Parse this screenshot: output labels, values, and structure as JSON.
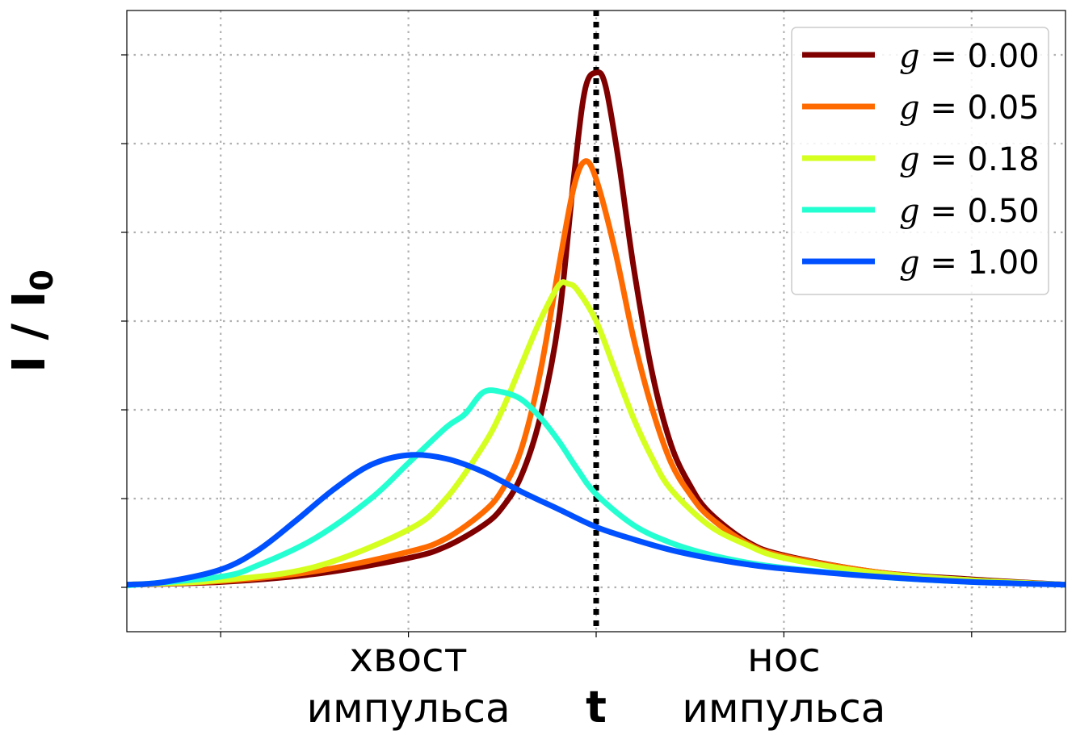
{
  "chart_data": {
    "type": "line",
    "title": "",
    "xlabel": "t",
    "ylabel": "I / I₀",
    "ylabel_main": "I / I",
    "ylabel_subscript": "0",
    "xlim": [
      -2.5,
      2.5
    ],
    "ylim": [
      -0.05,
      0.65
    ],
    "xticks": [
      -2.0,
      -1.0,
      0.0,
      1.0,
      2.0
    ],
    "yticks": [
      0.0,
      0.1,
      0.2,
      0.3,
      0.4,
      0.5,
      0.6
    ],
    "category_labels": [
      {
        "x": -1.0,
        "line1": "хвост",
        "line2": "импульса"
      },
      {
        "x": 1.0,
        "line1": "нос",
        "line2": "импульса"
      }
    ],
    "show_y_tick_labels": false,
    "grid": true,
    "reference_line": {
      "x": 0.0,
      "style": "dotted",
      "color": "#000000"
    },
    "legend_position": "upper-right",
    "series": [
      {
        "name": "g = 0.00",
        "label_var": "g",
        "label_value": "0.00",
        "color": "#800000",
        "points": [
          [
            -2.5,
            0.003
          ],
          [
            -2.0,
            0.006
          ],
          [
            -1.5,
            0.015
          ],
          [
            -1.0,
            0.033
          ],
          [
            -0.8,
            0.046
          ],
          [
            -0.6,
            0.07
          ],
          [
            -0.5,
            0.09
          ],
          [
            -0.4,
            0.125
          ],
          [
            -0.3,
            0.19
          ],
          [
            -0.2,
            0.3
          ],
          [
            -0.12,
            0.46
          ],
          [
            -0.06,
            0.56
          ],
          [
            0.0,
            0.58
          ],
          [
            0.05,
            0.565
          ],
          [
            0.12,
            0.48
          ],
          [
            0.2,
            0.36
          ],
          [
            0.3,
            0.24
          ],
          [
            0.4,
            0.16
          ],
          [
            0.5,
            0.115
          ],
          [
            0.6,
            0.085
          ],
          [
            0.8,
            0.052
          ],
          [
            1.0,
            0.036
          ],
          [
            1.5,
            0.017
          ],
          [
            2.0,
            0.009
          ],
          [
            2.5,
            0.003
          ]
        ]
      },
      {
        "name": "g = 0.05",
        "label_var": "g",
        "label_value": "0.05",
        "color": "#ff6a00",
        "points": [
          [
            -2.5,
            0.003
          ],
          [
            -2.0,
            0.007
          ],
          [
            -1.5,
            0.018
          ],
          [
            -1.0,
            0.04
          ],
          [
            -0.8,
            0.055
          ],
          [
            -0.6,
            0.085
          ],
          [
            -0.5,
            0.11
          ],
          [
            -0.4,
            0.155
          ],
          [
            -0.3,
            0.24
          ],
          [
            -0.2,
            0.36
          ],
          [
            -0.12,
            0.45
          ],
          [
            -0.06,
            0.48
          ],
          [
            0.0,
            0.46
          ],
          [
            0.1,
            0.38
          ],
          [
            0.2,
            0.28
          ],
          [
            0.3,
            0.2
          ],
          [
            0.4,
            0.14
          ],
          [
            0.5,
            0.105
          ],
          [
            0.6,
            0.08
          ],
          [
            0.8,
            0.05
          ],
          [
            1.0,
            0.035
          ],
          [
            1.5,
            0.017
          ],
          [
            2.0,
            0.008
          ],
          [
            2.5,
            0.003
          ]
        ]
      },
      {
        "name": "g = 0.18",
        "label_var": "g",
        "label_value": "0.18",
        "color": "#d4ff1f",
        "points": [
          [
            -2.5,
            0.003
          ],
          [
            -2.0,
            0.008
          ],
          [
            -1.5,
            0.023
          ],
          [
            -1.0,
            0.065
          ],
          [
            -0.8,
            0.1
          ],
          [
            -0.6,
            0.16
          ],
          [
            -0.5,
            0.2
          ],
          [
            -0.4,
            0.25
          ],
          [
            -0.3,
            0.3
          ],
          [
            -0.2,
            0.34
          ],
          [
            -0.15,
            0.342
          ],
          [
            -0.1,
            0.335
          ],
          [
            0.0,
            0.3
          ],
          [
            0.1,
            0.245
          ],
          [
            0.2,
            0.19
          ],
          [
            0.3,
            0.145
          ],
          [
            0.4,
            0.11
          ],
          [
            0.6,
            0.07
          ],
          [
            0.8,
            0.048
          ],
          [
            1.0,
            0.033
          ],
          [
            1.5,
            0.016
          ],
          [
            2.0,
            0.008
          ],
          [
            2.5,
            0.003
          ]
        ]
      },
      {
        "name": "g = 0.50",
        "label_var": "g",
        "label_value": "0.50",
        "color": "#24ffd1",
        "points": [
          [
            -2.5,
            0.002
          ],
          [
            -2.0,
            0.012
          ],
          [
            -1.8,
            0.025
          ],
          [
            -1.5,
            0.055
          ],
          [
            -1.2,
            0.1
          ],
          [
            -1.0,
            0.14
          ],
          [
            -0.8,
            0.18
          ],
          [
            -0.7,
            0.195
          ],
          [
            -0.6,
            0.22
          ],
          [
            -0.5,
            0.22
          ],
          [
            -0.4,
            0.212
          ],
          [
            -0.3,
            0.192
          ],
          [
            -0.2,
            0.165
          ],
          [
            -0.1,
            0.133
          ],
          [
            0.0,
            0.105
          ],
          [
            0.2,
            0.07
          ],
          [
            0.4,
            0.05
          ],
          [
            0.6,
            0.037
          ],
          [
            0.8,
            0.028
          ],
          [
            1.0,
            0.022
          ],
          [
            1.5,
            0.012
          ],
          [
            2.0,
            0.006
          ],
          [
            2.5,
            0.003
          ]
        ]
      },
      {
        "name": "g = 1.00",
        "label_var": "g",
        "label_value": "1.00",
        "color": "#0050ff",
        "points": [
          [
            -2.5,
            0.003
          ],
          [
            -2.3,
            0.006
          ],
          [
            -2.0,
            0.02
          ],
          [
            -1.8,
            0.042
          ],
          [
            -1.6,
            0.075
          ],
          [
            -1.4,
            0.11
          ],
          [
            -1.2,
            0.138
          ],
          [
            -1.0,
            0.149
          ],
          [
            -0.8,
            0.145
          ],
          [
            -0.6,
            0.13
          ],
          [
            -0.4,
            0.108
          ],
          [
            -0.2,
            0.088
          ],
          [
            0.0,
            0.068
          ],
          [
            0.2,
            0.054
          ],
          [
            0.4,
            0.042
          ],
          [
            0.6,
            0.033
          ],
          [
            0.8,
            0.026
          ],
          [
            1.0,
            0.021
          ],
          [
            1.5,
            0.012
          ],
          [
            2.0,
            0.006
          ],
          [
            2.5,
            0.003
          ]
        ]
      }
    ]
  }
}
